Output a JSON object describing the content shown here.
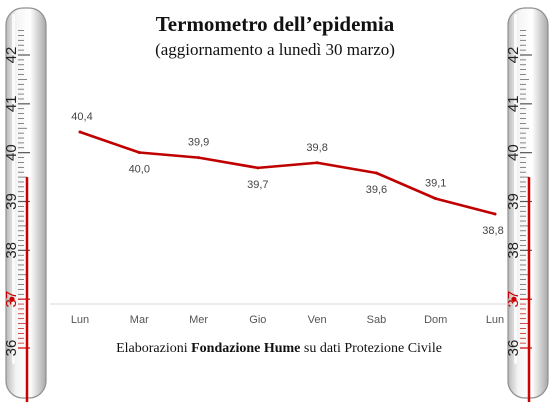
{
  "title": "Termometro dell’epidemia",
  "subtitle": "(aggiornamento a lunedì 30 marzo)",
  "credit": {
    "prefix": "Elaborazioni ",
    "org": "Fondazione Hume",
    "suffix": " su dati Protezione Civile"
  },
  "thermometer": {
    "scale_labels": [
      "42",
      "41",
      "40",
      "39",
      "38",
      "37",
      "36"
    ],
    "highlight_value": "37",
    "level": 39.5,
    "mercury_color": "#cc0000"
  },
  "chart_data": {
    "type": "line",
    "categories": [
      "Lun",
      "Mar",
      "Mer",
      "Gio",
      "Ven",
      "Sab",
      "Dom",
      "Lun"
    ],
    "values": [
      40.4,
      40.0,
      39.9,
      39.7,
      39.8,
      39.6,
      39.1,
      38.8
    ],
    "data_labels": [
      "40,4",
      "40,0",
      "39,9",
      "39,7",
      "39,8",
      "39,6",
      "39,1",
      "38,8"
    ],
    "line_color": "#c00000",
    "ylim": [
      36,
      42.5
    ]
  }
}
